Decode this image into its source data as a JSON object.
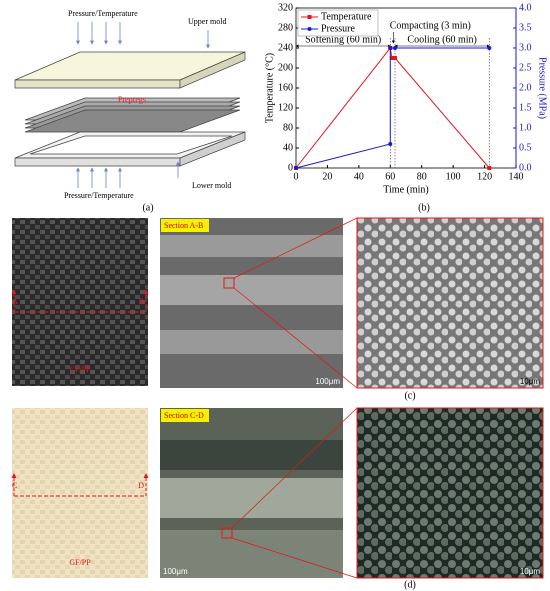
{
  "figure_a": {
    "top_load": "Pressure/Temperature",
    "upper_mold": "Upper mold",
    "prepregs": "Prepregs",
    "bottom_load": "Pressure/Temperature",
    "lower_mold": "Lower mold",
    "caption": "(a)"
  },
  "chart_data": {
    "type": "line",
    "caption": "(b)",
    "x_label": "Time (min)",
    "y_label": "Temperature (°C)",
    "y2_label": "Pressure (MPa)",
    "xlim": [
      0,
      140
    ],
    "xticks": [
      0,
      20,
      40,
      60,
      80,
      100,
      120,
      140
    ],
    "ylim": [
      0,
      320
    ],
    "yticks": [
      0,
      40,
      80,
      120,
      160,
      200,
      240,
      280,
      320
    ],
    "y2lim": [
      0,
      4
    ],
    "y2ticks": [
      {
        "value": 0,
        "label": "0.0"
      },
      0.5,
      {
        "value": 1,
        "label": "1.0"
      },
      1.5,
      {
        "value": 2,
        "label": "2.0"
      },
      2.5,
      {
        "value": 3,
        "label": "3.0"
      },
      3.5,
      {
        "value": 4,
        "label": "4.0"
      }
    ],
    "series": [
      {
        "name": "Temperature",
        "color": "#e8141b",
        "x": [
          0,
          60,
          61,
          63,
          123
        ],
        "values": [
          0,
          240,
          220,
          220,
          0
        ]
      },
      {
        "name": "Pressure",
        "color": "#1a1ad6",
        "axis": "y2",
        "x": [
          0,
          60,
          60,
          63,
          123
        ],
        "values": [
          0,
          0.6,
          3.0,
          3.0,
          3.0
        ]
      }
    ],
    "annotations": [
      "Softening (60 min)",
      "Compacting (3 min)",
      "Cooling (60 min)"
    ],
    "legend": "upper left"
  },
  "panel_c": {
    "caption": "(c)",
    "left_marker": "A",
    "right_marker": "B",
    "material": "CF/PP",
    "section": "Section A-B",
    "scale_mid": "100μm",
    "scale_right": "10μm"
  },
  "panel_d": {
    "caption": "(d)",
    "left_marker": "C",
    "right_marker": "D",
    "material": "GF/PP",
    "section": "Section C-D",
    "scale_mid": "100μm",
    "scale_right": "10μm"
  }
}
